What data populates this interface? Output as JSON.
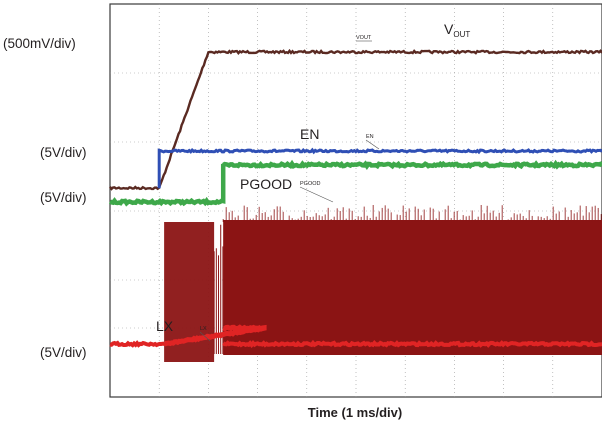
{
  "chart_data": {
    "type": "line",
    "title": "",
    "xlabel": "Time (1 ms/div)",
    "x_divisions": 10,
    "grid": true,
    "channels": [
      {
        "name": "V_OUT",
        "label_main": "V",
        "label_sub": "OUT",
        "probe_tag": "VOUT",
        "scale": "(500mV/div)",
        "color": "#5a2a22",
        "x": [
          0,
          1.0,
          2.0,
          10.0
        ],
        "y": [
          0.0,
          0.0,
          1.8,
          1.8
        ],
        "y_unit": "V"
      },
      {
        "name": "EN",
        "label_main": "EN",
        "probe_tag": "EN",
        "scale": "(5V/div)",
        "color": "#2f4fb5",
        "x": [
          0,
          1.0,
          1.0,
          10.0
        ],
        "y": [
          0,
          0,
          5,
          5
        ],
        "y_unit": "V"
      },
      {
        "name": "PGOOD",
        "label_main": "PGOOD",
        "probe_tag": "PGOOD",
        "scale": "(5V/div)",
        "color": "#3ea84a",
        "x": [
          0,
          2.3,
          2.3,
          10.0
        ],
        "y": [
          0,
          0,
          5,
          5
        ],
        "y_unit": "V"
      },
      {
        "name": "LX",
        "label_main": "LX",
        "probe_tag": "LX",
        "scale": "(5V/div)",
        "color": "#8b1414",
        "baseline_color": "#e02424",
        "switching_start_ms": 1.1,
        "burst_region_end_ms": 2.3,
        "continuous_start_ms": 2.3,
        "amplitude_V": 5
      }
    ]
  }
}
